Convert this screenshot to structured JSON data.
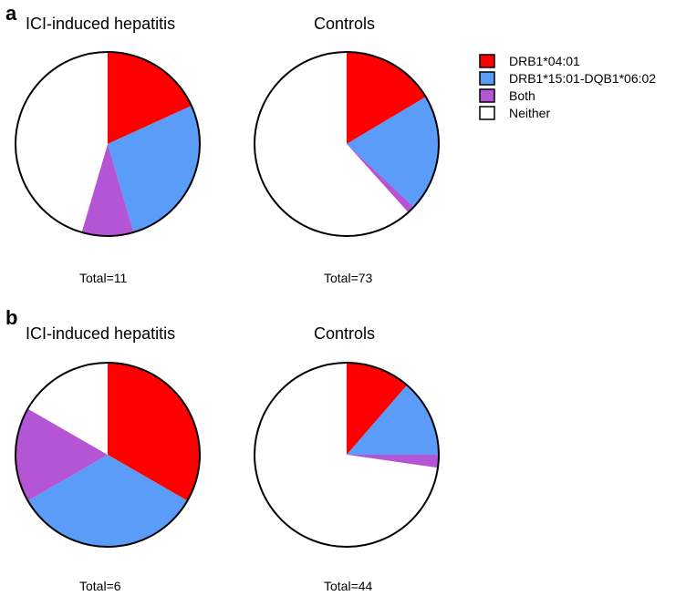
{
  "colors": {
    "DRB1*04:01": "#ff0000",
    "DRB1*15:01-DQB1*06:02": "#5a9cf7",
    "Both": "#b455d6",
    "Neither": "#ffffff"
  },
  "legend": {
    "placement": "top-right",
    "items": [
      "DRB1*04:01",
      "DRB1*15:01-DQB1*06:02",
      "Both",
      "Neither"
    ]
  },
  "panels": [
    {
      "letter": "a"
    },
    {
      "letter": "b"
    }
  ],
  "chart_data": [
    {
      "type": "pie",
      "panel": "a",
      "title": "ICI-induced hepatitis",
      "total_label": "Total=11",
      "categories": [
        "DRB1*04:01",
        "DRB1*15:01-DQB1*06:02",
        "Both",
        "Neither"
      ],
      "values": [
        2,
        3,
        1,
        5
      ]
    },
    {
      "type": "pie",
      "panel": "a",
      "title": "Controls",
      "total_label": "Total=73",
      "categories": [
        "DRB1*04:01",
        "DRB1*15:01-DQB1*06:02",
        "Both",
        "Neither"
      ],
      "values": [
        12,
        15,
        1,
        45
      ]
    },
    {
      "type": "pie",
      "panel": "b",
      "title": "ICI-induced hepatitis",
      "total_label": "Total=6",
      "categories": [
        "DRB1*04:01",
        "DRB1*15:01-DQB1*06:02",
        "Both",
        "Neither"
      ],
      "values": [
        2,
        2,
        1,
        1
      ]
    },
    {
      "type": "pie",
      "panel": "b",
      "title": "Controls",
      "total_label": "Total=44",
      "categories": [
        "DRB1*04:01",
        "DRB1*15:01-DQB1*06:02",
        "Both",
        "Neither"
      ],
      "values": [
        5,
        6,
        1,
        32
      ]
    }
  ]
}
